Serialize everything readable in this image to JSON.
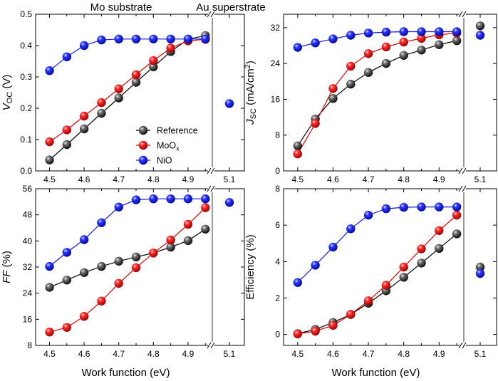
{
  "top_labels": {
    "left": "Mo substrate",
    "right": "Au superstrate"
  },
  "colors": {
    "reference": "#000000",
    "moox": "#e00000",
    "nio": "#1414e6"
  },
  "legend": {
    "reference": "Reference",
    "moox_base": "MoO",
    "moox_sub": "x",
    "nio": "NiO"
  },
  "x_tick_labels": [
    "4.5",
    "4.6",
    "4.7",
    "4.8",
    "4.9"
  ],
  "inset_tick_label": "5.1",
  "x_axis_title": "Work function (eV)",
  "chart_data": [
    {
      "id": "voc",
      "type": "line",
      "title": "",
      "ylabel": {
        "italic": "V",
        "sub": "OC",
        "rest": " (V)"
      },
      "xlabel": "Work function (eV)",
      "ylim": [
        0,
        0.5
      ],
      "yticks": [
        0,
        0.1,
        0.2,
        0.3,
        0.4,
        0.5
      ],
      "ytick_labels": [
        "0.0",
        "0.1",
        "0.2",
        "0.3",
        "0.4",
        "0.5"
      ],
      "x": [
        4.5,
        4.55,
        4.6,
        4.65,
        4.7,
        4.75,
        4.8,
        4.85,
        4.9,
        4.95
      ],
      "series": [
        {
          "name": "Reference",
          "values": [
            0.035,
            0.084,
            0.134,
            0.184,
            0.233,
            0.283,
            0.332,
            0.381,
            0.42,
            0.432
          ]
        },
        {
          "name": "MoOx",
          "values": [
            0.093,
            0.131,
            0.175,
            0.218,
            0.262,
            0.307,
            0.352,
            0.392,
            0.415,
            0.42
          ]
        },
        {
          "name": "NiO",
          "values": [
            0.32,
            0.364,
            0.4,
            0.418,
            0.421,
            0.421,
            0.421,
            0.421,
            0.421,
            0.421
          ]
        }
      ],
      "inset": {
        "x": 5.1,
        "values": {
          "Reference": null,
          "MoOx": null,
          "NiO": 0.215
        }
      },
      "legend": true
    },
    {
      "id": "jsc",
      "type": "line",
      "title": "",
      "ylabel": {
        "italic": "J",
        "sub": "SC",
        "rest": " (mA/cm",
        "sup": "2",
        "close": ")"
      },
      "xlabel": "Work function (eV)",
      "ylim": [
        0,
        35
      ],
      "yticks": [
        0,
        8,
        16,
        24,
        32
      ],
      "ytick_labels": [
        "0",
        "8",
        "16",
        "24",
        "32"
      ],
      "x": [
        4.5,
        4.55,
        4.6,
        4.65,
        4.7,
        4.75,
        4.8,
        4.85,
        4.9,
        4.95
      ],
      "series": [
        {
          "name": "Reference",
          "values": [
            5.6,
            11.6,
            16.2,
            19.4,
            22.0,
            24.0,
            25.8,
            27.0,
            28.2,
            29.1
          ]
        },
        {
          "name": "MoOx",
          "values": [
            3.8,
            10.6,
            18.4,
            23.4,
            26.2,
            27.7,
            28.8,
            29.6,
            30.4,
            30.8
          ]
        },
        {
          "name": "NiO",
          "values": [
            27.6,
            28.6,
            29.5,
            30.3,
            30.8,
            31.0,
            31.1,
            31.1,
            31.1,
            31.1
          ]
        }
      ],
      "inset": {
        "x": 5.1,
        "values": {
          "Reference": 32.4,
          "MoOx": null,
          "NiO": 30.3
        }
      },
      "legend": false
    },
    {
      "id": "ff",
      "type": "line",
      "title": "",
      "ylabel": {
        "italic": "FF",
        "rest": " (%)"
      },
      "xlabel": "Work function (eV)",
      "ylim": [
        8,
        56
      ],
      "yticks": [
        8,
        16,
        24,
        32,
        40,
        48,
        56
      ],
      "ytick_labels": [
        "8",
        "16",
        "24",
        "32",
        "40",
        "48",
        "56"
      ],
      "x": [
        4.5,
        4.55,
        4.6,
        4.65,
        4.7,
        4.75,
        4.8,
        4.85,
        4.9,
        4.95
      ],
      "series": [
        {
          "name": "Reference",
          "values": [
            25.8,
            28.0,
            30.3,
            32.2,
            33.8,
            35.1,
            36.3,
            38.1,
            40.1,
            43.6
          ]
        },
        {
          "name": "MoOx",
          "values": [
            12.1,
            13.5,
            16.9,
            21.6,
            27.0,
            31.8,
            36.3,
            40.3,
            45.1,
            50.2
          ]
        },
        {
          "name": "NiO",
          "values": [
            32.2,
            36.5,
            40.4,
            45.6,
            50.4,
            52.6,
            52.9,
            52.9,
            52.9,
            52.9
          ]
        }
      ],
      "inset": {
        "x": 5.1,
        "values": {
          "Reference": null,
          "MoOx": null,
          "NiO": 51.8
        }
      },
      "legend": false
    },
    {
      "id": "eff",
      "type": "line",
      "title": "",
      "ylabel": {
        "plain": "Efficiency (%)"
      },
      "xlabel": "Work function (eV)",
      "ylim": [
        -0.6,
        8
      ],
      "yticks": [
        0,
        2,
        4,
        6,
        8
      ],
      "ytick_labels": [
        "0",
        "2",
        "4",
        "6",
        "8"
      ],
      "x": [
        4.5,
        4.55,
        4.6,
        4.65,
        4.7,
        4.75,
        4.8,
        4.85,
        4.9,
        4.95
      ],
      "series": [
        {
          "name": "Reference",
          "values": [
            0.05,
            0.28,
            0.66,
            1.1,
            1.72,
            2.4,
            3.14,
            3.92,
            4.72,
            5.52
          ]
        },
        {
          "name": "MoOx",
          "values": [
            0.03,
            0.18,
            0.5,
            1.1,
            1.85,
            2.7,
            3.7,
            4.7,
            5.7,
            6.55
          ]
        },
        {
          "name": "NiO",
          "values": [
            2.85,
            3.8,
            4.8,
            5.8,
            6.55,
            6.9,
            6.98,
            7.0,
            7.0,
            7.0
          ]
        }
      ],
      "inset": {
        "x": 5.1,
        "values": {
          "Reference": 3.7,
          "MoOx": null,
          "NiO": 3.35
        }
      },
      "legend": false
    }
  ]
}
